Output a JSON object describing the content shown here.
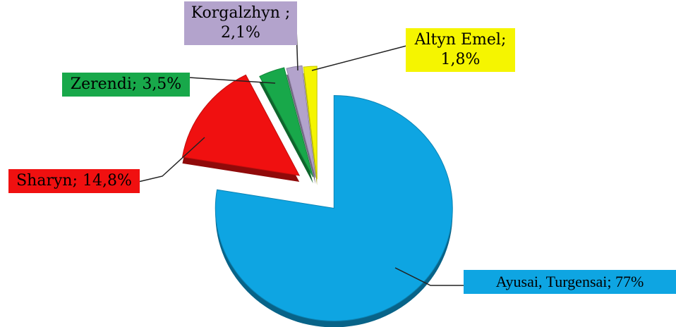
{
  "chart_data": {
    "type": "pie",
    "values": [
      77,
      14.8,
      3.5,
      2.1,
      1.8
    ],
    "value_labels": [
      "Ayusai, Turgensai; 77%",
      "Sharyn; 14,8%",
      "Zerendi; 3,5%",
      "Korgalzhyn ; 2,1%",
      "Altyn Emel; 1,8%"
    ],
    "colors": [
      "#0ea5e2",
      "#f01010",
      "#18a84a",
      "#b3a3cc",
      "#f5f500"
    ],
    "exploded": true
  }
}
